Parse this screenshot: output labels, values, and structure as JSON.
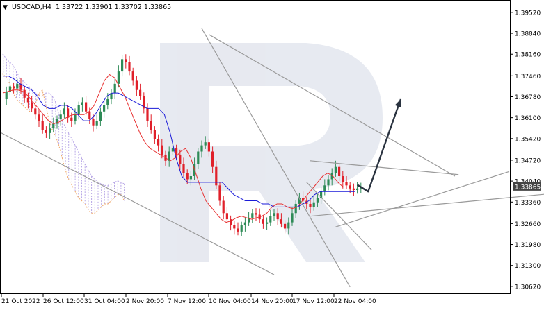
{
  "header": {
    "menu_glyph": "▼",
    "symbol_line": "USDCAD,H4  1.33722 1.33901 1.33702 1.33865"
  },
  "current_price_label": "1.33865",
  "colors": {
    "bull": "#2e8b57",
    "bear": "#e0202a",
    "tenkan": "#e83030",
    "kijun": "#1a1ad8",
    "cloud_a": "#b7a6e6",
    "cloud_b": "#f0a868",
    "trendline": "#9a9a9a",
    "forecast_arrow": "#2a3340",
    "watermark": "#dfe3ec",
    "price_tag_bg": "#444444"
  },
  "chart_data": {
    "type": "candlestick",
    "symbol": "USDCAD",
    "timeframe": "H4",
    "ohlc_header": {
      "open": 1.33722,
      "high": 1.33901,
      "low": 1.33702,
      "close": 1.33865
    },
    "y_ticks": [
      "1.39520",
      "1.38840",
      "1.38160",
      "1.37460",
      "1.36780",
      "1.36100",
      "1.35420",
      "1.34720",
      "1.34040",
      "1.33360",
      "1.32660",
      "1.31980",
      "1.31300",
      "1.30620"
    ],
    "x_ticks": [
      "21 Oct 2022",
      "26 Oct 12:00",
      "31 Oct 04:00",
      "2 Nov 20:00",
      "7 Nov 12:00",
      "10 Nov 04:00",
      "14 Nov 20:00",
      "17 Nov 12:00",
      "22 Nov 04:00"
    ],
    "ylim": [
      1.3037,
      1.399
    ],
    "close_series": [
      1.367,
      1.3695,
      1.3712,
      1.3705,
      1.372,
      1.37,
      1.3675,
      1.366,
      1.364,
      1.362,
      1.36,
      1.357,
      1.356,
      1.3575,
      1.359,
      1.3605,
      1.362,
      1.364,
      1.361,
      1.36,
      1.362,
      1.365,
      1.366,
      1.363,
      1.3605,
      1.3585,
      1.36,
      1.363,
      1.365,
      1.367,
      1.369,
      1.372,
      1.376,
      1.38,
      1.379,
      1.376,
      1.373,
      1.37,
      1.368,
      1.364,
      1.36,
      1.357,
      1.354,
      1.352,
      1.349,
      1.347,
      1.35,
      1.351,
      1.349,
      1.346,
      1.343,
      1.341,
      1.342,
      1.346,
      1.35,
      1.352,
      1.353,
      1.35,
      1.345,
      1.339,
      1.334,
      1.33,
      1.328,
      1.326,
      1.325,
      1.324,
      1.326,
      1.327,
      1.3285,
      1.33,
      1.3295,
      1.328,
      1.3265,
      1.327,
      1.329,
      1.33,
      1.328,
      1.3265,
      1.325,
      1.327,
      1.33,
      1.333,
      1.335,
      1.334,
      1.333,
      1.332,
      1.3335,
      1.335,
      1.337,
      1.339,
      1.341,
      1.343,
      1.345,
      1.342,
      1.34,
      1.339,
      1.338,
      1.3375,
      1.338,
      1.33865
    ],
    "tenkan_series": [
      1.369,
      1.3695,
      1.37,
      1.37,
      1.3695,
      1.368,
      1.366,
      1.364,
      1.362,
      1.36,
      1.359,
      1.3595,
      1.3605,
      1.3615,
      1.362,
      1.362,
      1.362,
      1.363,
      1.365,
      1.369,
      1.373,
      1.375,
      1.374,
      1.371,
      1.368,
      1.364,
      1.36,
      1.356,
      1.353,
      1.351,
      1.35,
      1.349,
      1.348,
      1.347,
      1.348,
      1.35,
      1.351,
      1.348,
      1.343,
      1.338,
      1.334,
      1.332,
      1.33,
      1.328,
      1.327,
      1.3275,
      1.3285,
      1.329,
      1.3285,
      1.328,
      1.3285,
      1.329,
      1.33,
      1.332,
      1.333,
      1.333,
      1.332,
      1.3315,
      1.332,
      1.334,
      1.336,
      1.338,
      1.34,
      1.342,
      1.343,
      1.342,
      1.34,
      1.3385
    ],
    "kijun_series": [
      1.3745,
      1.3745,
      1.3735,
      1.372,
      1.371,
      1.37,
      1.368,
      1.365,
      1.364,
      1.364,
      1.365,
      1.365,
      1.364,
      1.362,
      1.36,
      1.36,
      1.362,
      1.365,
      1.368,
      1.369,
      1.369,
      1.368,
      1.367,
      1.366,
      1.365,
      1.364,
      1.364,
      1.364,
      1.362,
      1.356,
      1.348,
      1.342,
      1.34,
      1.34,
      1.34,
      1.34,
      1.34,
      1.34,
      1.34,
      1.338,
      1.336,
      1.335,
      1.334,
      1.334,
      1.334,
      1.333,
      1.333,
      1.332,
      1.332,
      1.332,
      1.332,
      1.332,
      1.333,
      1.334,
      1.336,
      1.337,
      1.337,
      1.337,
      1.337,
      1.337,
      1.337,
      1.337
    ],
    "cloud_span_a": [
      1.382,
      1.3815,
      1.38,
      1.379,
      1.378,
      1.376,
      1.374,
      1.373,
      1.372,
      1.371,
      1.37,
      1.369,
      1.368,
      1.368,
      1.369,
      1.369,
      1.368,
      1.366,
      1.362,
      1.36,
      1.358,
      1.356,
      1.354,
      1.352,
      1.35,
      1.348,
      1.346,
      1.344,
      1.342,
      1.341,
      1.34,
      1.3395,
      1.339,
      1.339,
      1.3395,
      1.34,
      1.3405,
      1.34,
      1.3395
    ],
    "cloud_span_b": [
      1.376,
      1.375,
      1.374,
      1.372,
      1.369,
      1.367,
      1.366,
      1.365,
      1.364,
      1.363,
      1.364,
      1.366,
      1.369,
      1.37,
      1.365,
      1.36,
      1.357,
      1.355,
      1.352,
      1.348,
      1.344,
      1.341,
      1.339,
      1.337,
      1.335,
      1.334,
      1.333,
      1.331,
      1.33,
      1.33,
      1.331,
      1.332,
      1.333,
      1.333,
      1.334,
      1.335,
      1.336,
      1.336,
      1.334
    ],
    "trendlines": [
      {
        "p1": [
          -2,
          1.357
        ],
        "p2": [
          75,
          1.31
        ]
      },
      {
        "p1": [
          55,
          1.39
        ],
        "p2": [
          96,
          1.306
        ]
      },
      {
        "p1": [
          57,
          1.388
        ],
        "p2": [
          125,
          1.342
        ]
      },
      {
        "p1": [
          85,
          1.347
        ],
        "p2": [
          126,
          1.3425
        ]
      },
      {
        "p1": [
          84,
          1.34
        ],
        "p2": [
          102,
          1.318
        ]
      },
      {
        "p1": [
          85,
          1.329
        ],
        "p2": [
          176,
          1.339
        ]
      },
      {
        "p1": [
          92,
          1.3255
        ],
        "p2": [
          140,
          1.3435
        ]
      }
    ],
    "forecast_arrow": {
      "segments": [
        [
          98,
          1.3392
        ],
        [
          101,
          1.337
        ],
        [
          110,
          1.367
        ]
      ]
    },
    "grid": false,
    "watermark": "R"
  }
}
